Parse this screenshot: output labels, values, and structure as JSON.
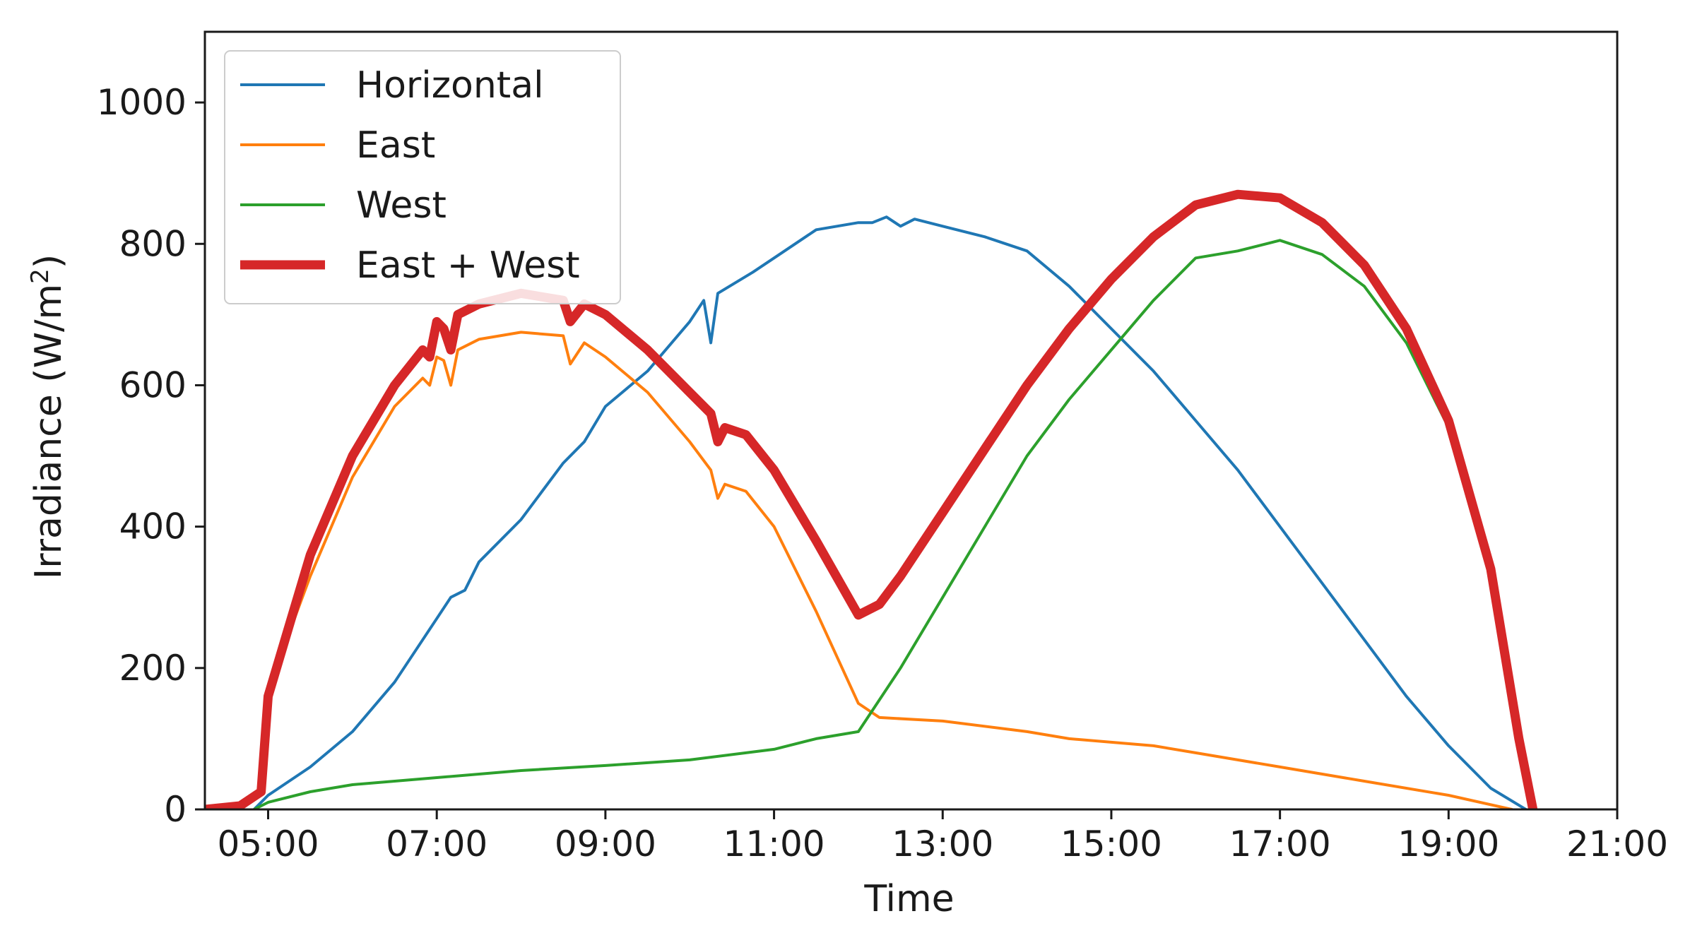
{
  "chart_data": {
    "type": "line",
    "xlabel": "Time",
    "ylabel": "Irradiance (W/m",
    "ylabel_sup": "2",
    "ylabel_close": ")",
    "xlim": [
      "04:15",
      "21:00"
    ],
    "ylim": [
      0,
      1100
    ],
    "x_ticks": [
      "05:00",
      "07:00",
      "09:00",
      "11:00",
      "13:00",
      "15:00",
      "17:00",
      "19:00",
      "21:00"
    ],
    "y_ticks": [
      0,
      200,
      400,
      600,
      800,
      1000
    ],
    "grid": false,
    "legend_position": "top-left",
    "series": [
      {
        "name": "Horizontal",
        "color": "#1f77b4",
        "width": "thin",
        "points": [
          [
            "04:50",
            0
          ],
          [
            "05:00",
            20
          ],
          [
            "05:30",
            60
          ],
          [
            "06:00",
            110
          ],
          [
            "06:30",
            180
          ],
          [
            "06:50",
            240
          ],
          [
            "07:00",
            270
          ],
          [
            "07:10",
            300
          ],
          [
            "07:20",
            310
          ],
          [
            "07:30",
            350
          ],
          [
            "08:00",
            410
          ],
          [
            "08:30",
            490
          ],
          [
            "08:45",
            520
          ],
          [
            "09:00",
            570
          ],
          [
            "09:30",
            620
          ],
          [
            "10:00",
            690
          ],
          [
            "10:10",
            720
          ],
          [
            "10:15",
            660
          ],
          [
            "10:20",
            730
          ],
          [
            "10:45",
            760
          ],
          [
            "11:00",
            780
          ],
          [
            "11:30",
            820
          ],
          [
            "12:00",
            830
          ],
          [
            "12:10",
            830
          ],
          [
            "12:20",
            838
          ],
          [
            "12:30",
            825
          ],
          [
            "12:40",
            835
          ],
          [
            "13:00",
            825
          ],
          [
            "13:30",
            810
          ],
          [
            "14:00",
            790
          ],
          [
            "14:30",
            740
          ],
          [
            "15:00",
            680
          ],
          [
            "15:30",
            620
          ],
          [
            "16:00",
            550
          ],
          [
            "16:30",
            480
          ],
          [
            "17:00",
            400
          ],
          [
            "17:30",
            320
          ],
          [
            "18:00",
            240
          ],
          [
            "18:30",
            160
          ],
          [
            "19:00",
            90
          ],
          [
            "19:30",
            30
          ],
          [
            "19:55",
            0
          ]
        ]
      },
      {
        "name": "East",
        "color": "#ff7f0e",
        "width": "thin",
        "points": [
          [
            "04:15",
            0
          ],
          [
            "04:40",
            5
          ],
          [
            "04:55",
            20
          ],
          [
            "05:00",
            150
          ],
          [
            "05:15",
            250
          ],
          [
            "05:30",
            330
          ],
          [
            "06:00",
            470
          ],
          [
            "06:30",
            570
          ],
          [
            "06:50",
            610
          ],
          [
            "06:55",
            600
          ],
          [
            "07:00",
            640
          ],
          [
            "07:05",
            635
          ],
          [
            "07:10",
            600
          ],
          [
            "07:15",
            650
          ],
          [
            "07:30",
            665
          ],
          [
            "08:00",
            675
          ],
          [
            "08:30",
            670
          ],
          [
            "08:35",
            630
          ],
          [
            "08:45",
            660
          ],
          [
            "09:00",
            640
          ],
          [
            "09:30",
            590
          ],
          [
            "10:00",
            520
          ],
          [
            "10:15",
            480
          ],
          [
            "10:20",
            440
          ],
          [
            "10:25",
            460
          ],
          [
            "10:40",
            450
          ],
          [
            "11:00",
            400
          ],
          [
            "11:30",
            280
          ],
          [
            "12:00",
            150
          ],
          [
            "12:15",
            130
          ],
          [
            "13:00",
            125
          ],
          [
            "14:00",
            110
          ],
          [
            "14:30",
            100
          ],
          [
            "15:00",
            95
          ],
          [
            "15:30",
            90
          ],
          [
            "16:00",
            80
          ],
          [
            "17:00",
            60
          ],
          [
            "18:00",
            40
          ],
          [
            "19:00",
            20
          ],
          [
            "19:45",
            0
          ]
        ]
      },
      {
        "name": "West",
        "color": "#2ca02c",
        "width": "thin",
        "points": [
          [
            "04:50",
            0
          ],
          [
            "05:00",
            10
          ],
          [
            "05:30",
            25
          ],
          [
            "06:00",
            35
          ],
          [
            "07:00",
            45
          ],
          [
            "08:00",
            55
          ],
          [
            "09:00",
            62
          ],
          [
            "10:00",
            70
          ],
          [
            "11:00",
            85
          ],
          [
            "11:30",
            100
          ],
          [
            "12:00",
            110
          ],
          [
            "12:30",
            200
          ],
          [
            "13:00",
            300
          ],
          [
            "13:30",
            400
          ],
          [
            "14:00",
            500
          ],
          [
            "14:30",
            580
          ],
          [
            "15:00",
            650
          ],
          [
            "15:30",
            720
          ],
          [
            "16:00",
            780
          ],
          [
            "16:30",
            790
          ],
          [
            "17:00",
            805
          ],
          [
            "17:30",
            785
          ],
          [
            "18:00",
            740
          ],
          [
            "18:30",
            660
          ],
          [
            "19:00",
            540
          ],
          [
            "19:30",
            330
          ],
          [
            "19:50",
            100
          ],
          [
            "20:00",
            0
          ]
        ]
      },
      {
        "name": "East + West",
        "color": "#d62728",
        "width": "thick",
        "points": [
          [
            "04:15",
            0
          ],
          [
            "04:40",
            5
          ],
          [
            "04:55",
            25
          ],
          [
            "05:00",
            160
          ],
          [
            "05:15",
            260
          ],
          [
            "05:30",
            360
          ],
          [
            "06:00",
            500
          ],
          [
            "06:30",
            600
          ],
          [
            "06:50",
            650
          ],
          [
            "06:55",
            640
          ],
          [
            "07:00",
            690
          ],
          [
            "07:05",
            680
          ],
          [
            "07:10",
            650
          ],
          [
            "07:15",
            700
          ],
          [
            "07:30",
            715
          ],
          [
            "08:00",
            730
          ],
          [
            "08:30",
            720
          ],
          [
            "08:35",
            690
          ],
          [
            "08:45",
            715
          ],
          [
            "09:00",
            700
          ],
          [
            "09:30",
            650
          ],
          [
            "10:00",
            590
          ],
          [
            "10:15",
            560
          ],
          [
            "10:20",
            520
          ],
          [
            "10:25",
            540
          ],
          [
            "10:40",
            530
          ],
          [
            "11:00",
            480
          ],
          [
            "11:30",
            380
          ],
          [
            "12:00",
            275
          ],
          [
            "12:15",
            290
          ],
          [
            "12:30",
            330
          ],
          [
            "13:00",
            420
          ],
          [
            "13:30",
            510
          ],
          [
            "14:00",
            600
          ],
          [
            "14:30",
            680
          ],
          [
            "15:00",
            750
          ],
          [
            "15:30",
            810
          ],
          [
            "16:00",
            855
          ],
          [
            "16:30",
            870
          ],
          [
            "17:00",
            865
          ],
          [
            "17:30",
            830
          ],
          [
            "18:00",
            770
          ],
          [
            "18:30",
            680
          ],
          [
            "19:00",
            550
          ],
          [
            "19:30",
            340
          ],
          [
            "19:50",
            100
          ],
          [
            "20:00",
            0
          ]
        ]
      }
    ]
  }
}
